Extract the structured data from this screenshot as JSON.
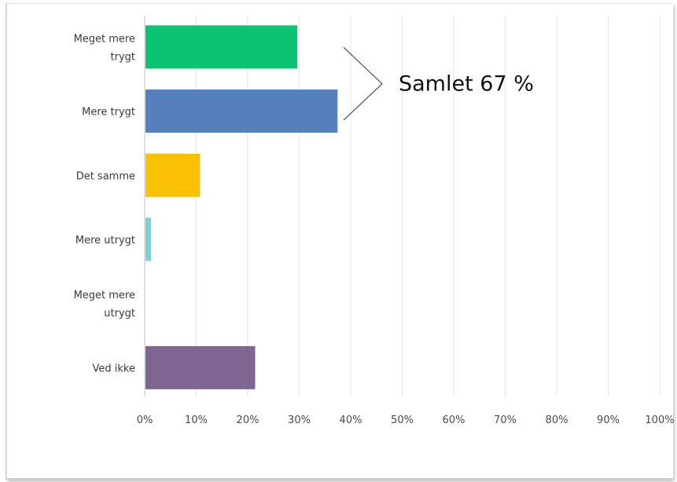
{
  "chart_data": {
    "type": "bar",
    "orientation": "horizontal",
    "categories": [
      [
        "Meget mere",
        "trygt"
      ],
      [
        "Mere trygt"
      ],
      [
        "Det samme"
      ],
      [
        "Mere utrygt"
      ],
      [
        "Meget mere",
        "utrygt"
      ],
      [
        "Ved ikke"
      ]
    ],
    "values": [
      29.5,
      37.3,
      10.6,
      1.1,
      0,
      21.3
    ],
    "colors": [
      "#0bc372",
      "#5580bd",
      "#f9c102",
      "#7ccfd2",
      "#cccccc",
      "#7e6592"
    ],
    "xlim": [
      0,
      100
    ],
    "ticks": [
      0,
      10,
      20,
      30,
      40,
      50,
      60,
      70,
      80,
      90,
      100
    ],
    "tick_labels": [
      "0%",
      "10%",
      "20%",
      "30%",
      "40%",
      "50%",
      "60%",
      "70%",
      "80%",
      "90%",
      "100%"
    ],
    "grid": true,
    "annotation": {
      "text": "Samlet 67 %",
      "brackets_categories": [
        "Meget mere trygt",
        "Mere trygt"
      ]
    }
  }
}
